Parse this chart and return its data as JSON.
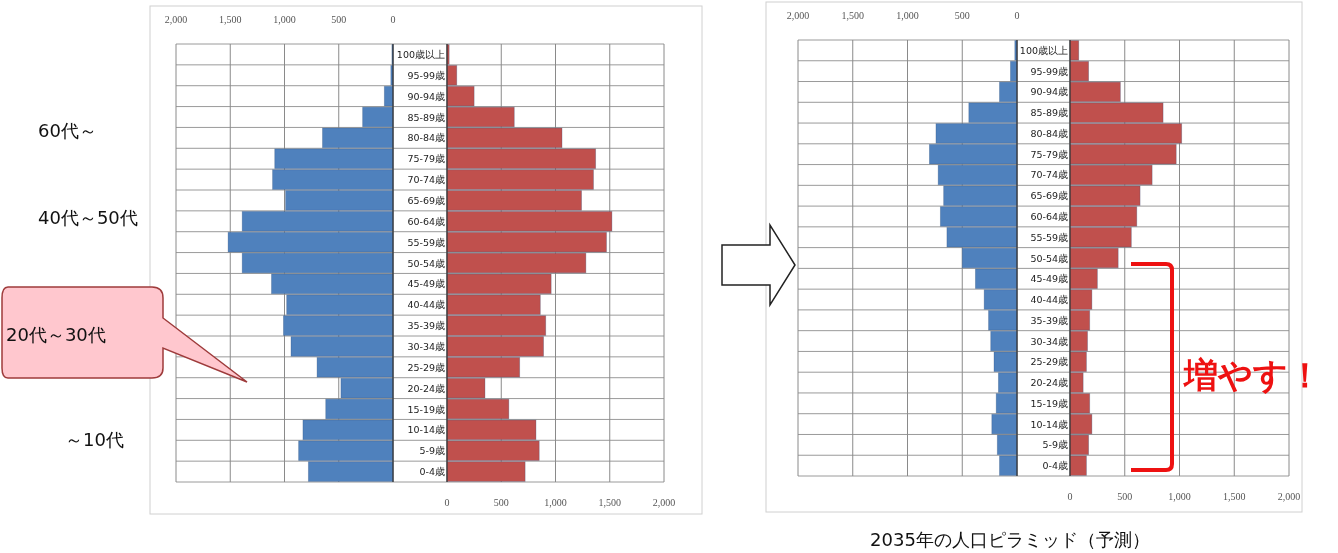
{
  "chart_data": [
    {
      "type": "bar",
      "orientation": "horizontal",
      "grid": true,
      "categories": [
        "100歳以上",
        "95-99歳",
        "90-94歳",
        "85-89歳",
        "80-84歳",
        "75-79歳",
        "70-74歳",
        "65-69歳",
        "60-64歳",
        "55-59歳",
        "50-54歳",
        "45-49歳",
        "40-44歳",
        "35-39歳",
        "30-34歳",
        "25-29歳",
        "20-24歳",
        "15-19歳",
        "10-14歳",
        "5-9歳",
        "0-4歳"
      ],
      "series": [
        {
          "color": "#4f81bd",
          "values": [
            10,
            20,
            80,
            280,
            650,
            1090,
            1110,
            990,
            1390,
            1520,
            1390,
            1120,
            980,
            1010,
            940,
            700,
            480,
            620,
            830,
            870,
            780
          ]
        }
      ],
      "xlim": [
        2000,
        0
      ],
      "xticks": [
        {
          "value": 2000,
          "label": "2,000"
        },
        {
          "value": 1500,
          "label": "1,500"
        },
        {
          "value": 1000,
          "label": "1,000"
        },
        {
          "value": 500,
          "label": "500"
        },
        {
          "value": 0,
          "label": "0"
        }
      ],
      "annotations": [
        "60代～",
        "40代～50代",
        "20代～30代",
        "～10代"
      ]
    },
    {
      "type": "bar",
      "orientation": "horizontal",
      "grid": true,
      "tick_labels": "x",
      "categories": [
        null,
        null,
        null,
        null,
        null,
        null,
        null,
        null,
        null,
        null,
        null,
        null,
        null,
        null,
        null,
        null,
        null,
        null,
        null,
        null,
        null
      ],
      "series": [
        {
          "color": "#c0504d",
          "values": [
            20,
            90,
            250,
            620,
            1060,
            1370,
            1350,
            1240,
            1520,
            1470,
            1280,
            960,
            860,
            910,
            890,
            670,
            350,
            570,
            820,
            850,
            720
          ]
        }
      ],
      "xlim": [
        0,
        2000
      ],
      "xticks": [
        {
          "value": 0,
          "label": "0"
        },
        {
          "value": 500,
          "label": "500"
        },
        {
          "value": 1000,
          "label": "1,000"
        },
        {
          "value": 1500,
          "label": "1,500"
        },
        {
          "value": 2000,
          "label": "2,000"
        }
      ]
    },
    {
      "type": "bar",
      "orientation": "horizontal",
      "grid": true,
      "categories": [
        "100歳以上",
        "95-99歳",
        "90-94歳",
        "85-89歳",
        "80-84歳",
        "75-79歳",
        "70-74歳",
        "65-69歳",
        "60-64歳",
        "55-59歳",
        "50-54歳",
        "45-49歳",
        "40-44歳",
        "35-39歳",
        "30-34歳",
        "25-29歳",
        "20-24歳",
        "15-19歳",
        "10-14歳",
        "5-9歳",
        "0-4歳"
      ],
      "series": [
        {
          "color": "#4f81bd",
          "values": [
            20,
            60,
            160,
            440,
            740,
            800,
            720,
            670,
            700,
            640,
            500,
            380,
            300,
            260,
            240,
            210,
            170,
            190,
            230,
            180,
            160
          ]
        }
      ],
      "xlim": [
        2000,
        0
      ],
      "xticks": [
        {
          "value": 2000,
          "label": "2,000"
        },
        {
          "value": 1500,
          "label": "1,500"
        },
        {
          "value": 1000,
          "label": "1,000"
        },
        {
          "value": 500,
          "label": "500"
        },
        {
          "value": 0,
          "label": "0"
        }
      ],
      "annotations": [
        "2035年の人口ピラミッド（予測）"
      ]
    },
    {
      "type": "bar",
      "orientation": "horizontal",
      "grid": true,
      "tick_labels": "x",
      "categories": [
        null,
        null,
        null,
        null,
        null,
        null,
        null,
        null,
        null,
        null,
        null,
        null,
        null,
        null,
        null,
        null,
        null,
        null,
        null,
        null,
        null
      ],
      "series": [
        {
          "color": "#c0504d",
          "values": [
            80,
            170,
            460,
            850,
            1020,
            970,
            750,
            640,
            610,
            560,
            440,
            250,
            200,
            180,
            160,
            150,
            120,
            180,
            200,
            170,
            150
          ]
        }
      ],
      "xlim": [
        0,
        2000
      ],
      "xticks": [
        {
          "value": 0,
          "label": "0"
        },
        {
          "value": 500,
          "label": "500"
        },
        {
          "value": 1000,
          "label": "1,000"
        },
        {
          "value": 1500,
          "label": "1,500"
        },
        {
          "value": 2000,
          "label": "2,000"
        }
      ],
      "annotations": [
        "増やす！"
      ]
    }
  ]
}
